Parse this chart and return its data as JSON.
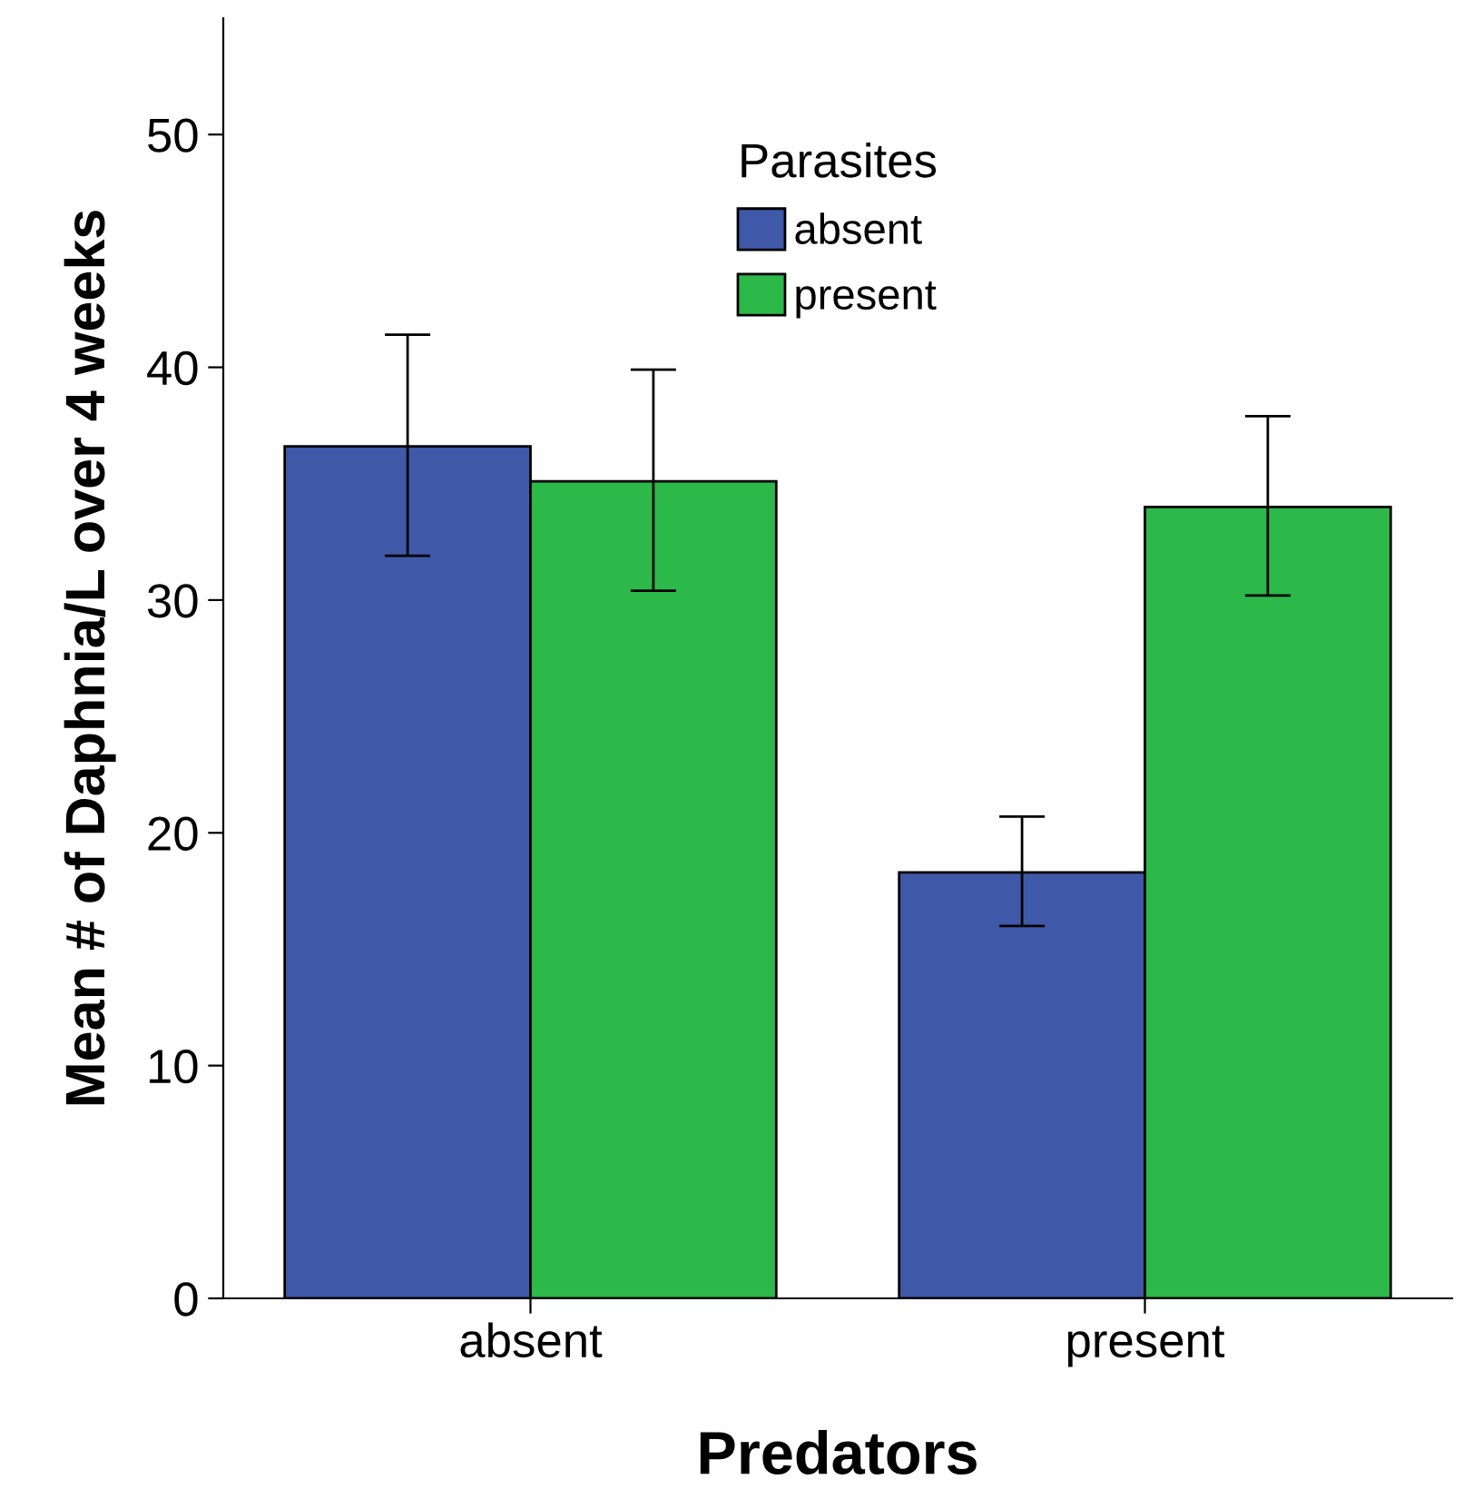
{
  "chart_data": {
    "type": "bar",
    "xlabel": "Predators",
    "ylabel": "Mean # of Daphnia/L over 4 weeks",
    "legend_title": "Parasites",
    "categories": [
      "absent",
      "present"
    ],
    "series": [
      {
        "name": "absent",
        "color": "#3f59a8",
        "values": [
          36.6,
          18.3
        ],
        "errors": [
          [
            31.9,
            41.4
          ],
          [
            16.0,
            20.7
          ]
        ]
      },
      {
        "name": "present",
        "color": "#2db84a",
        "values": [
          35.1,
          34.0
        ],
        "errors": [
          [
            30.4,
            39.9
          ],
          [
            30.2,
            37.9
          ]
        ]
      }
    ],
    "ylim": [
      0,
      55
    ],
    "yticks": [
      0,
      10,
      20,
      30,
      40,
      50
    ],
    "grid": false,
    "legend": "top"
  }
}
